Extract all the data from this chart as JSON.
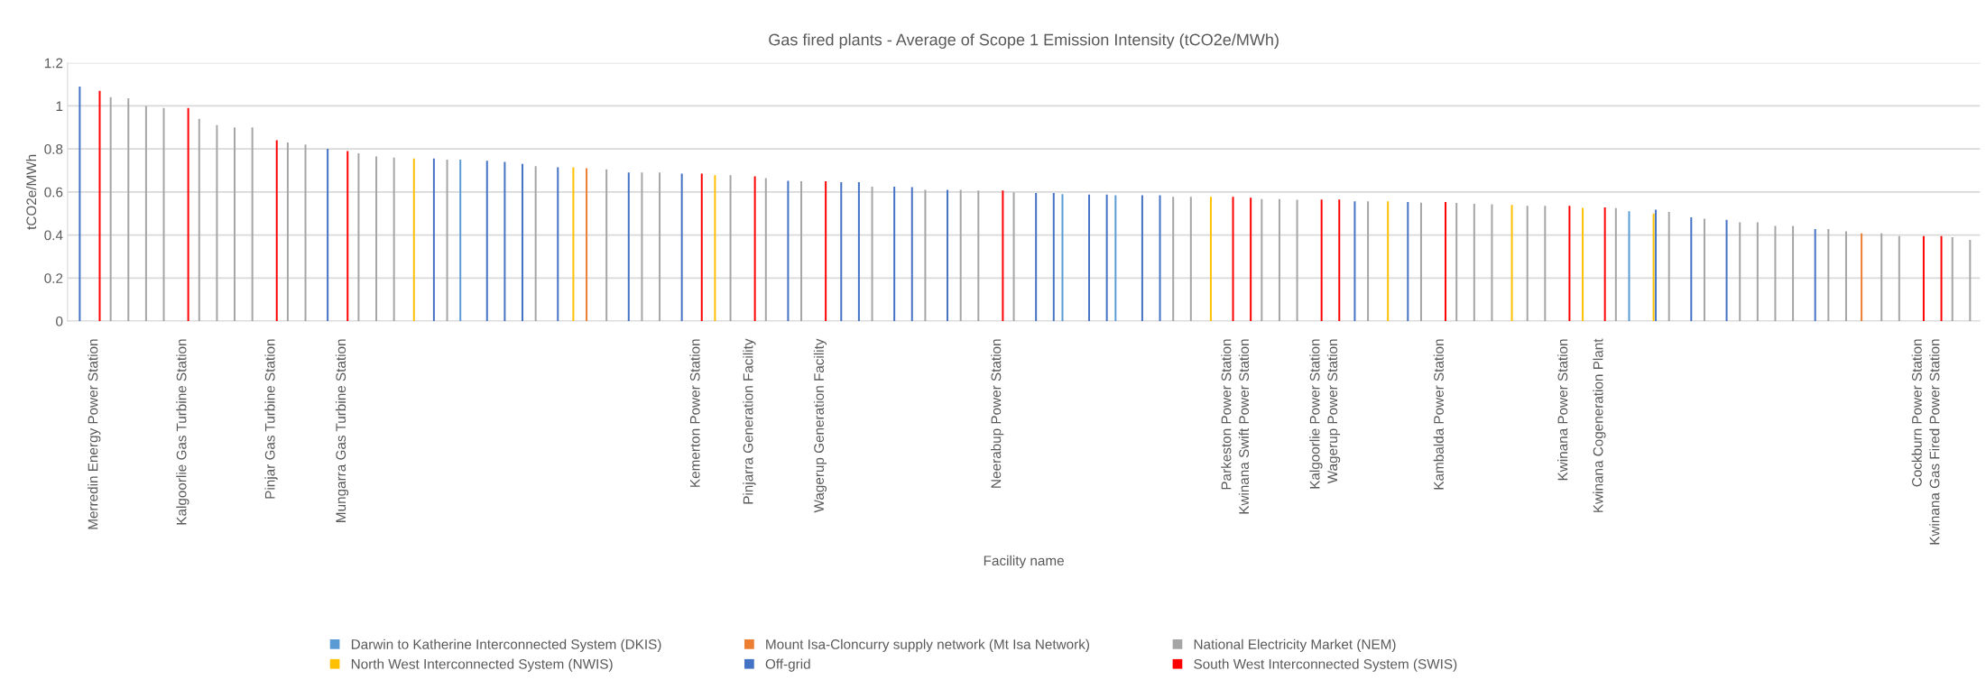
{
  "chart_data": {
    "type": "bar",
    "title": "Gas fired plants - Average of Scope 1 Emission Intensity (tCO2e/MWh)",
    "xlabel": "Facility name",
    "ylabel": "tCO2e/MWh",
    "categories": [
      null,
      "Merredin Energy Power Station",
      null,
      null,
      null,
      null,
      "Kalgoorlie Gas Turbine Station",
      null,
      null,
      null,
      null,
      "Pinjar Gas Turbine Station",
      null,
      null,
      null,
      "Mungarra Gas Turbine Station",
      null,
      null,
      null,
      null,
      null,
      null,
      null,
      null,
      null,
      null,
      null,
      null,
      null,
      null,
      null,
      null,
      null,
      null,
      null,
      "Kemerton Power Station",
      null,
      null,
      "Pinjarra Generation Facility",
      null,
      null,
      null,
      "Wagerup Generation Facility",
      null,
      null,
      null,
      null,
      null,
      null,
      null,
      null,
      null,
      "Neerabup Power Station",
      null,
      null,
      null,
      null,
      null,
      null,
      null,
      null,
      null,
      null,
      null,
      null,
      "Parkeston Power Station",
      "Kwinana Swift Power Station",
      null,
      null,
      null,
      "Kalgoorlie Power Station",
      "Wagerup Power Station",
      null,
      null,
      null,
      null,
      null,
      "Kambalda Power Station",
      null,
      null,
      null,
      null,
      null,
      null,
      "Kwinana Power Station",
      null,
      "Kwinana Cogeneration Plant",
      null,
      null,
      null,
      null,
      null,
      null,
      null,
      null,
      null,
      null,
      null,
      null,
      null,
      null,
      null,
      null,
      null,
      "Cockburn Power Station",
      "Kwinana Gas Fired Power Station",
      null,
      null
    ],
    "series": [
      {
        "name": "Darwin to Katherine Interconnected System (DKIS)",
        "color": "#5b9bd5",
        "values": [
          null,
          null,
          null,
          null,
          null,
          null,
          null,
          null,
          null,
          null,
          null,
          null,
          null,
          null,
          null,
          null,
          null,
          null,
          null,
          null,
          null,
          null,
          0.75,
          null,
          null,
          null,
          null,
          null,
          null,
          null,
          null,
          null,
          null,
          null,
          null,
          null,
          null,
          null,
          null,
          null,
          null,
          null,
          null,
          null,
          null,
          null,
          null,
          null,
          null,
          null,
          null,
          null,
          null,
          null,
          null,
          null,
          0.59,
          null,
          null,
          0.585,
          null,
          null,
          null,
          null,
          null,
          null,
          null,
          null,
          null,
          null,
          null,
          null,
          null,
          null,
          null,
          null,
          null,
          null,
          null,
          null,
          null,
          null,
          null,
          null,
          null,
          null,
          null,
          null,
          0.51,
          null,
          null,
          null,
          null,
          null,
          null,
          null,
          null,
          null,
          null,
          null,
          null,
          null,
          null,
          null,
          null,
          null,
          null,
          null
        ]
      },
      {
        "name": "Mount Isa-Cloncurry supply network (Mt Isa Network)",
        "color": "#ed7d31",
        "values": [
          null,
          null,
          null,
          null,
          null,
          null,
          null,
          null,
          null,
          null,
          null,
          null,
          null,
          null,
          null,
          null,
          null,
          null,
          null,
          null,
          null,
          null,
          null,
          null,
          null,
          null,
          null,
          null,
          null,
          0.71,
          null,
          null,
          null,
          null,
          null,
          null,
          null,
          null,
          null,
          null,
          null,
          null,
          null,
          null,
          null,
          null,
          null,
          null,
          null,
          null,
          null,
          null,
          null,
          null,
          null,
          null,
          null,
          null,
          null,
          null,
          null,
          null,
          null,
          null,
          null,
          null,
          null,
          null,
          null,
          null,
          null,
          null,
          null,
          null,
          null,
          null,
          null,
          null,
          null,
          null,
          null,
          null,
          null,
          null,
          null,
          null,
          null,
          null,
          null,
          null,
          null,
          null,
          null,
          null,
          null,
          null,
          null,
          null,
          null,
          null,
          null,
          0.408,
          null,
          null,
          null,
          null,
          null,
          null
        ]
      },
      {
        "name": "National Electricity Market (NEM)",
        "color": "#a5a5a5",
        "values": [
          null,
          null,
          1.04,
          1.035,
          1.0,
          0.99,
          null,
          0.94,
          0.91,
          0.9,
          0.9,
          null,
          0.83,
          0.82,
          null,
          null,
          0.78,
          0.765,
          0.76,
          null,
          null,
          0.75,
          null,
          null,
          null,
          null,
          0.72,
          null,
          null,
          null,
          0.705,
          null,
          0.69,
          0.69,
          null,
          null,
          null,
          0.678,
          null,
          0.664,
          null,
          0.65,
          null,
          null,
          null,
          0.625,
          null,
          null,
          0.61,
          null,
          0.61,
          0.607,
          null,
          0.598,
          null,
          null,
          null,
          null,
          null,
          null,
          null,
          null,
          0.577,
          0.577,
          null,
          null,
          null,
          0.567,
          0.567,
          0.564,
          null,
          null,
          null,
          0.556,
          null,
          null,
          0.55,
          null,
          0.549,
          0.545,
          0.543,
          null,
          0.535,
          0.535,
          null,
          null,
          null,
          0.525,
          null,
          null,
          0.507,
          null,
          0.476,
          null,
          0.459,
          0.459,
          0.442,
          0.442,
          null,
          0.428,
          0.417,
          null,
          0.408,
          0.395,
          null,
          null,
          0.39,
          0.377
        ]
      },
      {
        "name": "North West Interconnected System (NWIS)",
        "color": "#ffc000",
        "values": [
          null,
          null,
          null,
          null,
          null,
          null,
          null,
          null,
          null,
          null,
          null,
          null,
          null,
          null,
          null,
          null,
          null,
          null,
          null,
          0.755,
          null,
          null,
          null,
          null,
          null,
          null,
          null,
          null,
          0.715,
          null,
          null,
          null,
          null,
          null,
          null,
          null,
          0.678,
          null,
          null,
          null,
          null,
          null,
          null,
          null,
          null,
          null,
          null,
          null,
          null,
          null,
          null,
          null,
          null,
          null,
          null,
          null,
          null,
          null,
          null,
          null,
          null,
          null,
          null,
          null,
          0.577,
          null,
          null,
          null,
          null,
          null,
          null,
          null,
          null,
          null,
          0.556,
          null,
          null,
          null,
          null,
          null,
          null,
          0.54,
          null,
          null,
          null,
          0.526,
          null,
          null,
          null,
          0.5,
          null,
          null,
          null,
          null,
          null,
          null,
          null,
          null,
          null,
          null,
          null,
          null,
          null,
          null,
          null,
          null,
          null,
          null
        ]
      },
      {
        "name": "Off-grid",
        "color": "#4472c4",
        "values": [
          1.09,
          null,
          null,
          null,
          null,
          null,
          null,
          null,
          null,
          null,
          null,
          null,
          null,
          null,
          0.8,
          null,
          null,
          null,
          null,
          null,
          0.755,
          null,
          null,
          0.745,
          0.74,
          0.73,
          null,
          0.715,
          null,
          null,
          null,
          0.69,
          null,
          null,
          0.685,
          null,
          null,
          null,
          null,
          null,
          0.652,
          null,
          null,
          0.645,
          0.645,
          null,
          0.625,
          0.622,
          null,
          0.61,
          null,
          null,
          null,
          null,
          0.595,
          0.595,
          null,
          0.588,
          0.588,
          null,
          0.585,
          0.585,
          null,
          null,
          null,
          null,
          null,
          null,
          null,
          null,
          null,
          null,
          0.556,
          null,
          null,
          0.553,
          null,
          null,
          null,
          null,
          null,
          null,
          null,
          null,
          null,
          null,
          null,
          null,
          null,
          0.518,
          null,
          0.482,
          null,
          0.47,
          null,
          null,
          null,
          null,
          0.428,
          null,
          null,
          null,
          null,
          null,
          null,
          null,
          null,
          null
        ]
      },
      {
        "name": "South West Interconnected System (SWIS)",
        "color": "#ff0000",
        "values": [
          null,
          1.07,
          null,
          null,
          null,
          null,
          0.99,
          null,
          null,
          null,
          null,
          0.84,
          null,
          null,
          null,
          0.79,
          null,
          null,
          null,
          null,
          null,
          null,
          null,
          null,
          null,
          null,
          null,
          null,
          null,
          null,
          null,
          null,
          null,
          null,
          null,
          0.685,
          null,
          null,
          0.673,
          null,
          null,
          null,
          0.65,
          null,
          null,
          null,
          null,
          null,
          null,
          null,
          null,
          null,
          0.607,
          null,
          null,
          null,
          null,
          null,
          null,
          null,
          null,
          null,
          null,
          null,
          null,
          0.577,
          0.573,
          null,
          null,
          null,
          0.565,
          0.565,
          null,
          null,
          null,
          null,
          null,
          0.553,
          null,
          null,
          null,
          null,
          null,
          null,
          0.535,
          null,
          0.528,
          null,
          null,
          null,
          null,
          null,
          null,
          null,
          null,
          null,
          null,
          null,
          null,
          null,
          null,
          null,
          null,
          null,
          0.395,
          0.395,
          null,
          null
        ]
      }
    ],
    "ylim": [
      0,
      1.2
    ],
    "yticks": [
      0,
      0.2,
      0.4,
      0.6,
      0.8,
      1,
      1.2
    ],
    "grid": "y",
    "legend": "bottom"
  }
}
